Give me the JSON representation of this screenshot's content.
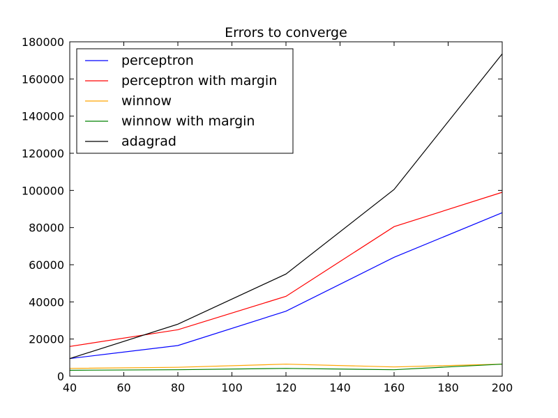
{
  "chart_data": {
    "type": "line",
    "title": "Errors to converge",
    "xlabel": "",
    "ylabel": "",
    "x": [
      40,
      80,
      120,
      160,
      200
    ],
    "xlim": [
      40,
      200
    ],
    "ylim": [
      0,
      180000
    ],
    "xticks": [
      40,
      60,
      80,
      100,
      120,
      140,
      160,
      180,
      200
    ],
    "yticks": [
      0,
      20000,
      40000,
      60000,
      80000,
      100000,
      120000,
      140000,
      160000,
      180000
    ],
    "grid": false,
    "legend_position": "top-left",
    "series": [
      {
        "name": "perceptron",
        "color": "#0000ff",
        "values": [
          9500,
          16500,
          35000,
          64000,
          88000
        ]
      },
      {
        "name": "perceptron with margin",
        "color": "#ff0000",
        "values": [
          16000,
          25000,
          43000,
          80500,
          99000
        ]
      },
      {
        "name": "winnow",
        "color": "#ffa500",
        "values": [
          4200,
          4800,
          6500,
          5000,
          6500
        ]
      },
      {
        "name": "winnow with margin",
        "color": "#008000",
        "values": [
          3200,
          3500,
          4200,
          3500,
          6500
        ]
      },
      {
        "name": "adagrad",
        "color": "#000000",
        "values": [
          9500,
          28000,
          55000,
          100500,
          173500
        ]
      }
    ]
  }
}
